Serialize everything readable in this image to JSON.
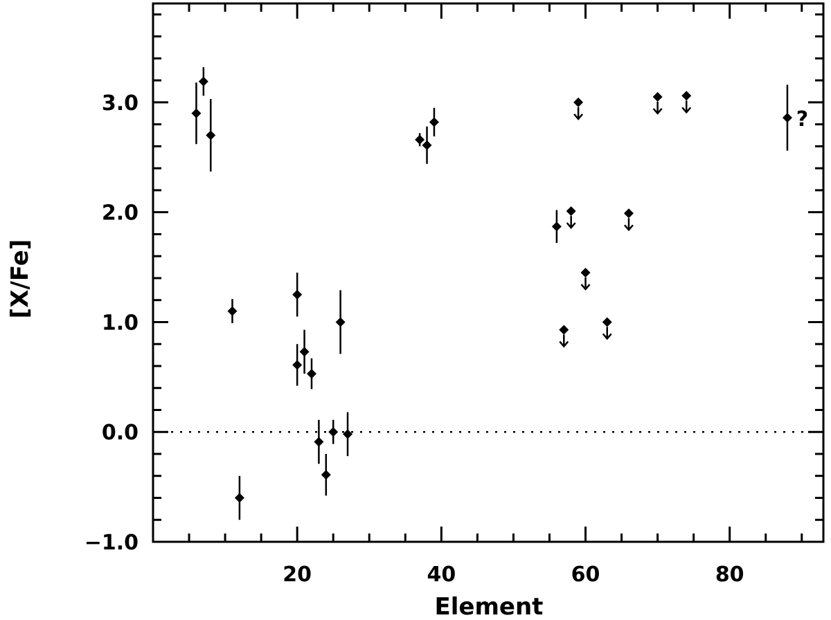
{
  "chart_data": {
    "type": "scatter",
    "title": "",
    "xlabel": "Element",
    "ylabel": "[X/Fe]",
    "xlim": [
      0,
      93
    ],
    "ylim": [
      -1.0,
      3.9
    ],
    "x_ticks": [
      20,
      40,
      60,
      80
    ],
    "x_tick_labels": [
      "20",
      "40",
      "60",
      "80"
    ],
    "y_ticks": [
      -1.0,
      0.0,
      1.0,
      2.0,
      3.0
    ],
    "y_tick_labels": [
      "−1.0",
      "0.0",
      "1.0",
      "2.0",
      "3.0"
    ],
    "reference_line": {
      "y": 0.0,
      "style": "dotted"
    },
    "grid": false,
    "points": [
      {
        "x": 6,
        "y": 2.9,
        "err": 0.28
      },
      {
        "x": 7,
        "y": 3.19,
        "err": 0.13
      },
      {
        "x": 8,
        "y": 2.7,
        "err": 0.33
      },
      {
        "x": 11,
        "y": 1.1,
        "err": 0.11
      },
      {
        "x": 12,
        "y": -0.6,
        "err": 0.2
      },
      {
        "x": 20,
        "y": 1.25,
        "err": 0.2
      },
      {
        "x": 20,
        "y": 0.61,
        "err": 0.19
      },
      {
        "x": 21,
        "y": 0.73,
        "err": 0.2
      },
      {
        "x": 22,
        "y": 0.53,
        "err": 0.14
      },
      {
        "x": 23,
        "y": -0.09,
        "err": 0.2
      },
      {
        "x": 24,
        "y": -0.39,
        "err": 0.19
      },
      {
        "x": 25,
        "y": 0.0,
        "err": 0.11
      },
      {
        "x": 26,
        "y": 1.0,
        "err": 0.29
      },
      {
        "x": 27,
        "y": -0.02,
        "err": 0.2
      },
      {
        "x": 37,
        "y": 2.66,
        "err": 0.06
      },
      {
        "x": 38,
        "y": 2.61,
        "err": 0.17
      },
      {
        "x": 39,
        "y": 2.82,
        "err": 0.13
      },
      {
        "x": 56,
        "y": 1.87,
        "err": 0.15
      },
      {
        "x": 57,
        "y": 0.93,
        "upper_limit": true
      },
      {
        "x": 58,
        "y": 2.01,
        "upper_limit": true
      },
      {
        "x": 59,
        "y": 3.0,
        "upper_limit": true
      },
      {
        "x": 60,
        "y": 1.45,
        "upper_limit": true
      },
      {
        "x": 63,
        "y": 1.0,
        "upper_limit": true
      },
      {
        "x": 66,
        "y": 1.99,
        "upper_limit": true
      },
      {
        "x": 70,
        "y": 3.05,
        "upper_limit": true
      },
      {
        "x": 74,
        "y": 3.06,
        "upper_limit": true
      },
      {
        "x": 88,
        "y": 2.86,
        "err": 0.3
      }
    ],
    "annotations": [
      {
        "text": "?",
        "x": 90,
        "y": 2.86
      }
    ]
  }
}
